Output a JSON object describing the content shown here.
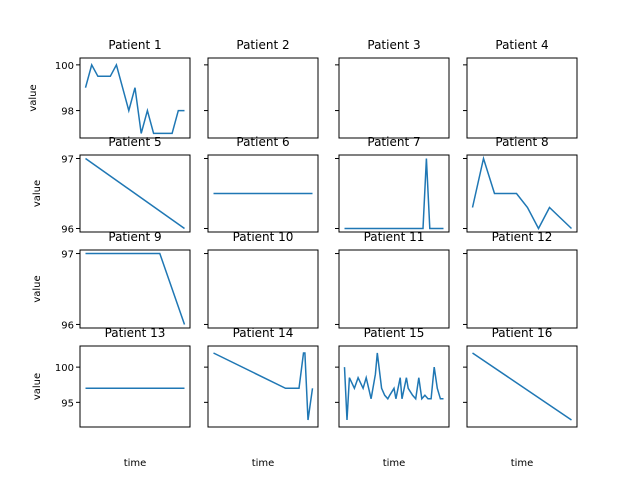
{
  "chart_data": [
    {
      "type": "line",
      "title": "Patient 1",
      "ylabel": "value",
      "xlabel": "",
      "ylim": [
        96.8,
        100.3
      ],
      "yticks": [
        98,
        100
      ],
      "x": [
        0,
        1,
        2,
        3,
        4,
        5,
        6,
        7,
        8,
        9,
        10,
        11,
        12,
        13,
        14,
        15,
        16
      ],
      "values": [
        99,
        100,
        99.5,
        99.5,
        99.5,
        100,
        99,
        98,
        99,
        97,
        98,
        97,
        97,
        97,
        97,
        98,
        98
      ],
      "color": "#1f77b4"
    },
    {
      "type": "line",
      "title": "Patient 2",
      "ylabel": "",
      "xlabel": "",
      "ylim": [
        96.8,
        100.3
      ],
      "yticks": [
        98,
        100
      ],
      "x": [],
      "values": [],
      "color": "#1f77b4"
    },
    {
      "type": "line",
      "title": "Patient 3",
      "ylabel": "",
      "xlabel": "",
      "ylim": [
        96.8,
        100.3
      ],
      "yticks": [
        98,
        100
      ],
      "x": [],
      "values": [],
      "color": "#1f77b4"
    },
    {
      "type": "line",
      "title": "Patient 4",
      "ylabel": "",
      "xlabel": "",
      "ylim": [
        96.8,
        100.3
      ],
      "yticks": [
        98,
        100
      ],
      "x": [],
      "values": [],
      "color": "#1f77b4"
    },
    {
      "type": "line",
      "title": "Patient 5",
      "ylabel": "value",
      "xlabel": "",
      "ylim": [
        95.95,
        97.05
      ],
      "yticks": [
        96,
        97
      ],
      "x": [
        0,
        1
      ],
      "values": [
        97,
        96
      ],
      "color": "#1f77b4"
    },
    {
      "type": "line",
      "title": "Patient 6",
      "ylabel": "",
      "xlabel": "",
      "ylim": [
        95.95,
        97.05
      ],
      "yticks": [
        96,
        97
      ],
      "x": [
        0,
        1
      ],
      "values": [
        96.5,
        96.5
      ],
      "color": "#1f77b4"
    },
    {
      "type": "line",
      "title": "Patient 7",
      "ylabel": "",
      "xlabel": "",
      "ylim": [
        95.95,
        97.05
      ],
      "yticks": [
        96,
        97
      ],
      "x": [
        0,
        1,
        2,
        3,
        4,
        5,
        6,
        7,
        8,
        9,
        10,
        11,
        12,
        13,
        14,
        15,
        16,
        17,
        18,
        19,
        20,
        21,
        22,
        23,
        24,
        25,
        26,
        27,
        28,
        29
      ],
      "values": [
        96,
        96,
        96,
        96,
        96,
        96,
        96,
        96,
        96,
        96,
        96,
        96,
        96,
        96,
        96,
        96,
        96,
        96,
        96,
        96,
        96,
        96,
        96,
        96,
        97,
        96,
        96,
        96,
        96,
        96
      ],
      "color": "#1f77b4"
    },
    {
      "type": "line",
      "title": "Patient 8",
      "ylabel": "",
      "xlabel": "",
      "ylim": [
        95.95,
        97.05
      ],
      "yticks": [
        96,
        97
      ],
      "x": [
        0,
        1,
        2,
        3,
        4,
        5,
        6,
        7,
        8,
        9
      ],
      "values": [
        96.3,
        97,
        96.5,
        96.5,
        96.5,
        96.3,
        96,
        96.3,
        96.15,
        96
      ],
      "color": "#1f77b4"
    },
    {
      "type": "line",
      "title": "Patient 9",
      "ylabel": "value",
      "xlabel": "",
      "ylim": [
        95.95,
        97.05
      ],
      "yticks": [
        96,
        97
      ],
      "x": [
        0,
        1,
        2,
        3,
        4
      ],
      "values": [
        97,
        97,
        97,
        97,
        96
      ],
      "color": "#1f77b4"
    },
    {
      "type": "line",
      "title": "Patient 10",
      "ylabel": "",
      "xlabel": "",
      "ylim": [
        95.95,
        97.05
      ],
      "yticks": [
        96,
        97
      ],
      "x": [],
      "values": [],
      "color": "#1f77b4"
    },
    {
      "type": "line",
      "title": "Patient 11",
      "ylabel": "",
      "xlabel": "",
      "ylim": [
        95.95,
        97.05
      ],
      "yticks": [
        96,
        97
      ],
      "x": [],
      "values": [],
      "color": "#1f77b4"
    },
    {
      "type": "line",
      "title": "Patient 12",
      "ylabel": "",
      "xlabel": "",
      "ylim": [
        95.95,
        97.05
      ],
      "yticks": [
        96,
        97
      ],
      "x": [],
      "values": [],
      "color": "#1f77b4"
    },
    {
      "type": "line",
      "title": "Patient 13",
      "ylabel": "value",
      "xlabel": "time",
      "ylim": [
        91.5,
        103
      ],
      "yticks": [
        95,
        100
      ],
      "x": [
        0,
        1
      ],
      "values": [
        97,
        97
      ],
      "color": "#1f77b4"
    },
    {
      "type": "line",
      "title": "Patient 14",
      "ylabel": "",
      "xlabel": "time",
      "ylim": [
        91.5,
        103
      ],
      "yticks": [
        95,
        100
      ],
      "x": [
        0,
        16,
        18,
        19,
        20,
        20.3,
        21,
        22
      ],
      "values": [
        102,
        97,
        97,
        97,
        102,
        102,
        92.5,
        97
      ],
      "color": "#1f77b4"
    },
    {
      "type": "line",
      "title": "Patient 15",
      "ylabel": "",
      "xlabel": "time",
      "ylim": [
        91.5,
        103
      ],
      "yticks": [
        95,
        100
      ],
      "x": [
        0,
        0.4,
        0.8,
        1.6,
        2.2,
        3,
        3.5,
        4.3,
        5,
        5.3,
        6,
        6.5,
        7,
        7.3,
        8,
        8.3,
        9,
        9.3,
        10,
        10.3,
        11,
        11.5,
        12,
        12.5,
        13,
        13.5,
        14,
        14.5,
        15,
        15.5,
        16
      ],
      "values": [
        100,
        92.5,
        98.5,
        97,
        98.5,
        97,
        98.5,
        95.5,
        99,
        102,
        97,
        96,
        95.5,
        96,
        97,
        95.5,
        98.5,
        95.5,
        98.5,
        97,
        96,
        95.5,
        98.5,
        95.5,
        96,
        95.5,
        95.5,
        100,
        97,
        95.5,
        95.5
      ],
      "color": "#1f77b4"
    },
    {
      "type": "line",
      "title": "Patient 16",
      "ylabel": "",
      "xlabel": "time",
      "ylim": [
        91.5,
        103
      ],
      "yticks": [
        95,
        100
      ],
      "x": [
        0,
        1
      ],
      "values": [
        102,
        92.5
      ],
      "color": "#1f77b4"
    }
  ],
  "axis_font": "DejaVu Sans"
}
